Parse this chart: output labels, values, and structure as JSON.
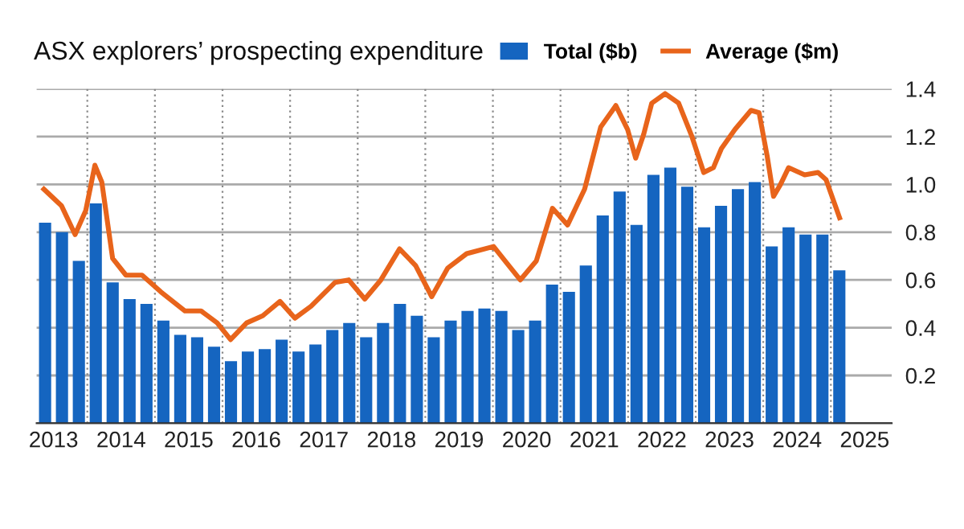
{
  "chart_data": {
    "type": "bar",
    "title": "ASX explorers’ prospecting expenditure",
    "x": [
      2012.875,
      2013.125,
      2013.375,
      2013.625,
      2013.875,
      2014.125,
      2014.375,
      2014.625,
      2014.875,
      2015.125,
      2015.375,
      2015.625,
      2015.875,
      2016.125,
      2016.375,
      2016.625,
      2016.875,
      2017.125,
      2017.375,
      2017.625,
      2017.875,
      2018.125,
      2018.375,
      2018.625,
      2018.875,
      2019.125,
      2019.375,
      2019.625,
      2019.875,
      2020.125,
      2020.375,
      2020.625,
      2020.875,
      2021.125,
      2021.375,
      2021.625,
      2021.875,
      2022.125,
      2022.375,
      2022.625,
      2022.875,
      2023.125,
      2023.375,
      2023.625,
      2023.875,
      2024.125,
      2024.375,
      2024.625
    ],
    "series": [
      {
        "name": "Total ($b)",
        "color": "#1565c0",
        "values": [
          0.84,
          0.8,
          0.68,
          0.92,
          0.59,
          0.52,
          0.5,
          0.43,
          0.37,
          0.36,
          0.32,
          0.26,
          0.3,
          0.31,
          0.35,
          0.3,
          0.33,
          0.39,
          0.42,
          0.36,
          0.42,
          0.5,
          0.45,
          0.36,
          0.43,
          0.47,
          0.48,
          0.47,
          0.39,
          0.43,
          0.58,
          0.55,
          0.66,
          0.87,
          0.97,
          0.83,
          1.04,
          1.07,
          0.99,
          0.82,
          0.91,
          0.98,
          1.01,
          0.74,
          0.82,
          0.79,
          0.79,
          0.64
        ]
      },
      {
        "name": "Average ($m)",
        "type": "line",
        "color": "#e8641b",
        "marker": "none",
        "line_style": "solid",
        "x": [
          2012.857,
          2013.119,
          2013.319,
          2013.476,
          2013.612,
          2013.714,
          2013.874,
          2014.071,
          2014.31,
          2014.588,
          2014.945,
          2015.183,
          2015.421,
          2015.619,
          2015.857,
          2016.095,
          2016.35,
          2016.571,
          2016.81,
          2017.167,
          2017.367,
          2017.605,
          2017.843,
          2018.119,
          2018.357,
          2018.595,
          2018.833,
          2019.112,
          2019.51,
          2019.707,
          2019.905,
          2020.143,
          2020.381,
          2020.605,
          2020.857,
          2021.095,
          2021.319,
          2021.493,
          2021.612,
          2021.731,
          2021.85,
          2022.048,
          2022.248,
          2022.445,
          2022.619,
          2022.762,
          2022.881,
          2023.081,
          2023.319,
          2023.438,
          2023.557,
          2023.652,
          2023.755,
          2023.874,
          2024.112,
          2024.31,
          2024.429,
          2024.629
        ],
        "values": [
          0.98,
          0.91,
          0.79,
          0.89,
          1.08,
          1.01,
          0.69,
          0.62,
          0.62,
          0.55,
          0.47,
          0.47,
          0.42,
          0.35,
          0.42,
          0.45,
          0.51,
          0.44,
          0.49,
          0.59,
          0.6,
          0.52,
          0.6,
          0.73,
          0.66,
          0.53,
          0.65,
          0.71,
          0.74,
          0.67,
          0.6,
          0.68,
          0.9,
          0.83,
          0.98,
          1.24,
          1.33,
          1.23,
          1.11,
          1.21,
          1.34,
          1.38,
          1.34,
          1.2,
          1.05,
          1.07,
          1.15,
          1.23,
          1.31,
          1.3,
          1.12,
          0.95,
          1.0,
          1.07,
          1.04,
          1.05,
          1.02,
          0.86
        ]
      }
    ],
    "xlim": [
      2012.75,
      2025.4
    ],
    "xticks": [
      2013,
      {
        "value": 2013.5,
        "label": null
      },
      2014,
      {
        "value": 2014.5,
        "label": null
      },
      2015,
      {
        "value": 2015.5,
        "label": null
      },
      2016,
      {
        "value": 2016.5,
        "label": null
      },
      2017,
      {
        "value": 2017.5,
        "label": null
      },
      2018,
      {
        "value": 2018.5,
        "label": null
      },
      2019,
      {
        "value": 2019.5,
        "label": null
      },
      2020,
      {
        "value": 2020.5,
        "label": null
      },
      2021,
      {
        "value": 2021.5,
        "label": null
      },
      2022,
      {
        "value": 2022.5,
        "label": null
      },
      2023,
      {
        "value": 2023.5,
        "label": null
      },
      2024,
      {
        "value": 2024.5,
        "label": null
      },
      2025
    ],
    "ylim": [
      0,
      1.4
    ],
    "yticks": [
      {
        "value": 0,
        "label": null
      },
      0.2,
      0.4,
      0.6,
      0.8,
      {
        "value": 1.0,
        "label": "1.0"
      },
      1.2,
      1.4
    ],
    "grid": true,
    "legend": "top right"
  }
}
